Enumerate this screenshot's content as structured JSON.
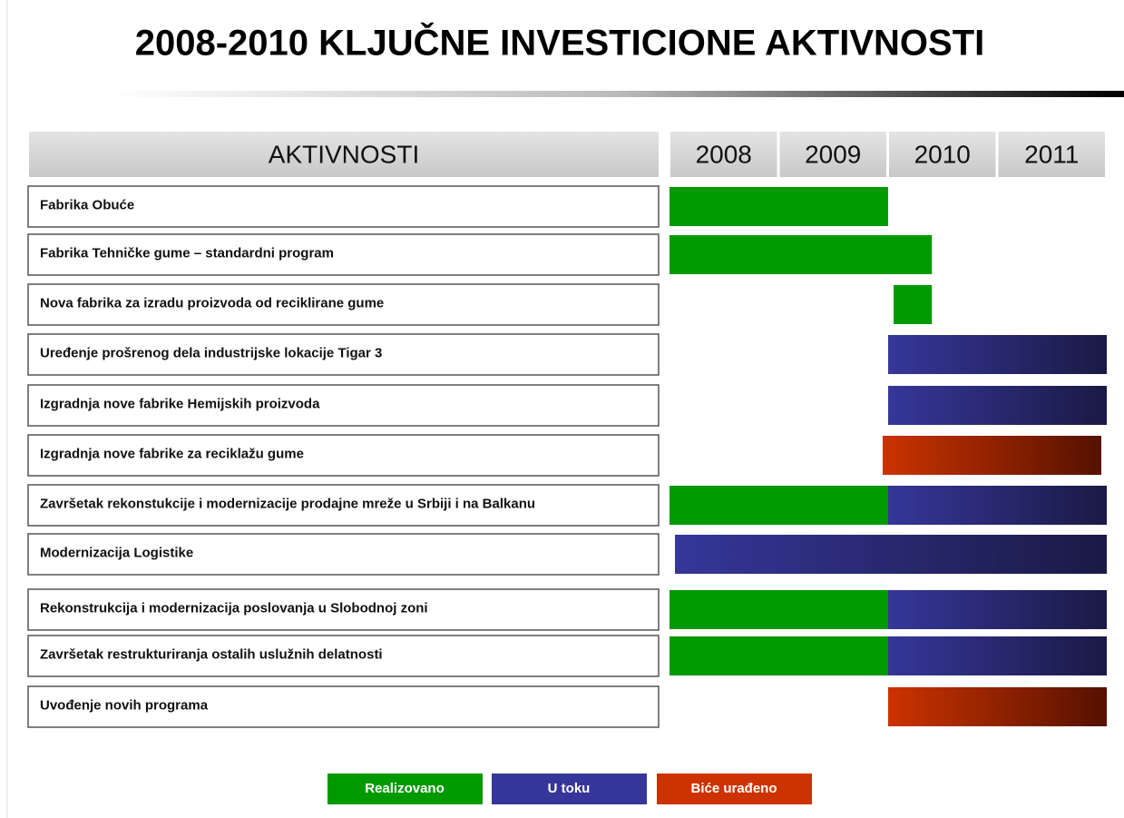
{
  "chart_data": {
    "type": "gantt",
    "title": "2008-2010 KLJUČNE INVESTICIONE AKTIVNOSTI",
    "header": "AKTIVNOSTI",
    "xlim": [
      2008,
      2012
    ],
    "xticks": [
      2008,
      2009,
      2010,
      2011
    ],
    "statuses": [
      {
        "name": "Realizovano",
        "color": "#009a00"
      },
      {
        "name": "U toku",
        "color": "#36369a"
      },
      {
        "name": "Biće urađeno",
        "color": "#cc3300"
      }
    ],
    "tasks": [
      {
        "name": "Fabrika Obuće",
        "segments": [
          {
            "status": 0,
            "start": 2008.0,
            "end": 2010.0
          }
        ]
      },
      {
        "name": "Fabrika Tehničke gume – standardni program",
        "segments": [
          {
            "status": 0,
            "start": 2008.0,
            "end": 2010.4
          }
        ]
      },
      {
        "name": "Nova fabrika za izradu proizvoda od reciklirane gume",
        "segments": [
          {
            "status": 0,
            "start": 2010.05,
            "end": 2010.4
          }
        ]
      },
      {
        "name": "Uređenje prošrenog dela industrijske lokacije Tigar 3",
        "segments": [
          {
            "status": 1,
            "start": 2010.0,
            "end": 2012.0
          }
        ]
      },
      {
        "name": "Izgradnja nove fabrike Hemijskih proizvoda",
        "segments": [
          {
            "status": 1,
            "start": 2010.0,
            "end": 2012.0
          }
        ]
      },
      {
        "name": "Izgradnja nove fabrike za reciklažu gume",
        "segments": [
          {
            "status": 2,
            "start": 2009.95,
            "end": 2011.95
          }
        ]
      },
      {
        "name": "Završetak rekonstukcije i modernizacije prodajne mreže u Srbiji i na Balkanu",
        "segments": [
          {
            "status": 0,
            "start": 2008.0,
            "end": 2010.0
          },
          {
            "status": 1,
            "start": 2010.0,
            "end": 2012.0
          }
        ]
      },
      {
        "name": "Modernizacija Logistike",
        "segments": [
          {
            "status": 1,
            "start": 2008.05,
            "end": 2012.0
          }
        ]
      },
      {
        "name": "Rekonstrukcija i modernizacija poslovanja u Slobodnoj zoni",
        "segments": [
          {
            "status": 0,
            "start": 2008.0,
            "end": 2010.0
          },
          {
            "status": 1,
            "start": 2010.0,
            "end": 2012.0
          }
        ]
      },
      {
        "name": "Završetak restrukturiranja ostalih uslužnih delatnosti",
        "segments": [
          {
            "status": 0,
            "start": 2008.0,
            "end": 2010.0
          },
          {
            "status": 1,
            "start": 2010.0,
            "end": 2012.0
          }
        ]
      },
      {
        "name": "Uvođenje novih programa",
        "segments": [
          {
            "status": 2,
            "start": 2010.0,
            "end": 2012.0
          }
        ]
      }
    ]
  }
}
